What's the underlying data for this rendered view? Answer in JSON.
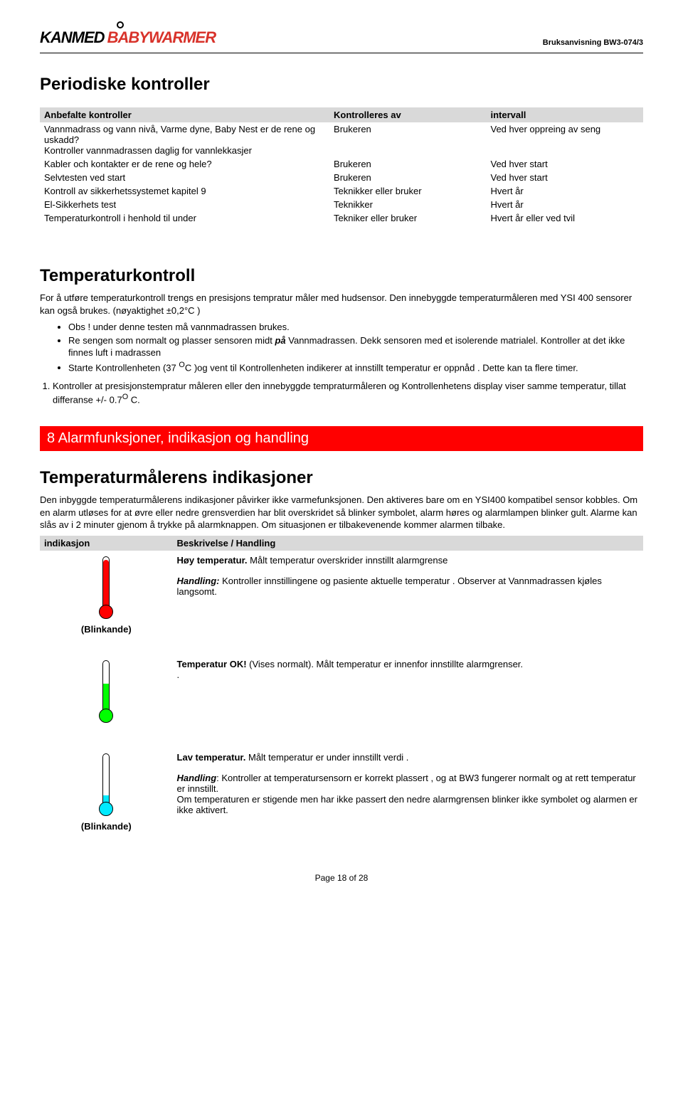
{
  "header": {
    "logo_part1": "KANMED",
    "logo_part2": "BABYWARMER",
    "doc_id": "Bruksanvisning BW3-074/3"
  },
  "section_periodic": {
    "title": "Periodiske kontroller",
    "table_headers": {
      "c1": "Anbefalte kontroller",
      "c2": "Kontrolleres av",
      "c3": "intervall"
    },
    "rows": [
      {
        "c1": "Vannmadrass og vann nivå, Varme dyne, Baby Nest er de rene og uskadd?\nKontroller vannmadrassen daglig for vannlekkasjer",
        "c2": "Brukeren",
        "c3": "Ved hver oppreing av seng"
      },
      {
        "c1": "Kabler och kontakter er de rene og hele?",
        "c2": "Brukeren",
        "c3": "Ved hver start"
      },
      {
        "c1": "Selvtesten ved start",
        "c2": "Brukeren",
        "c3": "Ved hver start"
      },
      {
        "c1": "Kontroll av sikkerhetssystemet  kapitel 9",
        "c2": "Teknikker eller bruker",
        "c3": "Hvert år"
      },
      {
        "c1": "El-Sikkerhets test",
        "c2": "Teknikker",
        "c3": "Hvert år"
      },
      {
        "c1": "Temperaturkontroll  i henhold til under",
        "c2": "Tekniker eller bruker",
        "c3": "Hvert år eller ved tvil"
      }
    ]
  },
  "section_tempctrl": {
    "title": "Temperaturkontroll",
    "intro": "For å utføre temperaturkontroll trengs en presisjons tempratur måler med hudsensor. Den innebyggde temperaturmåleren med YSI 400 sensorer kan også brukes. (nøyaktighet ±0,2°C )",
    "bullets": [
      "Obs ! under denne testen må vannmadrassen brukes.",
      "Re sengen som normalt og plasser sensoren midt <b><i>på</i></b> Vannmadrassen. Dekk sensoren med et isolerende matrialel. Kontroller at det ikke finnes luft i madrassen",
      "Starte Kontrollenheten (37 <sup>O</sup>C )og vent til Kontrollenheten indikerer at innstillt temperatur er oppnåd . Dette kan ta flere timer."
    ],
    "numbered": "Kontroller at presisjonstempratur måleren eller den innebyggde tempraturmåleren og Kontrollenhetens display viser samme temperatur, tillat differanse +/- 0.7<sup>O</sup> C."
  },
  "section_alarm": {
    "banner": "8   Alarmfunksjoner, indikasjon og handling",
    "title": "Temperaturmålerens indikasjoner",
    "intro": "Den inbyggde temperaturmålerens indikasjoner påvirker ikke varmefunksjonen. Den aktiveres bare om en YSI400 kompatibel sensor kobbles. Om en alarm utløses for at øvre eller nedre grensverdien har blit overskridet så blinker symbolet, alarm høres og alarmlampen blinker gult. Alarme kan slås av i 2 minuter gjenom å trykke på alarmknappen. Om situasjonen er tilbakevenende kommer alarmen tilbake.",
    "table_headers": {
      "c1": "indikasjon",
      "c2": "Beskrivelse / Handling"
    },
    "rows": [
      {
        "color": "red",
        "blink": "(Blinkande)",
        "title": "Høy temperatur.",
        "title_rest": " Målt temperatur overskrider innstillt alarmgrense",
        "handling_label": "Handling:",
        "handling_text": " Kontroller innstillingene og pasiente aktuelle temperatur . Observer at Vannmadrassen kjøles langsomt."
      },
      {
        "color": "green",
        "blink": "",
        "title": "Temperatur OK!",
        "title_rest": " (Vises normalt). Målt temperatur er innenfor innstillte alarmgrenser.",
        "handling_label": ".",
        "handling_text": ""
      },
      {
        "color": "cyan",
        "blink": "(Blinkande)",
        "title": "Lav temperatur.",
        "title_rest": " Målt temperatur er under innstillt verdi .",
        "handling_label": "Handling",
        "handling_text": ": Kontroller at temperatursensorn er korrekt plassert , og at BW3 fungerer normalt og at rett temperatur er innstillt.\nOm temperaturen er stigende men har ikke passert den nedre alarmgrensen blinker ikke symbolet og alarmen er ikke aktivert."
      }
    ]
  },
  "footer": {
    "text": "Page 18 of 28"
  }
}
